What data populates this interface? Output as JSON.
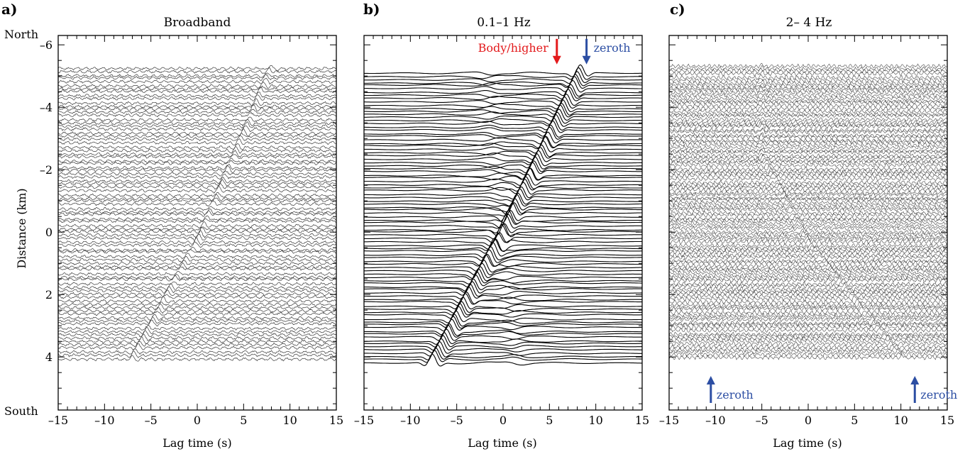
{
  "figure": {
    "panels": [
      {
        "letter": "a)",
        "title": "Broadband",
        "xlabel": "Lag time (s)",
        "ylabel": "Distance (km)",
        "ylabel_top": "North",
        "ylabel_bottom": "South",
        "annotations": []
      },
      {
        "letter": "b)",
        "title": "0.1–1 Hz",
        "xlabel": "Lag time (s)",
        "annotations": [
          {
            "text": "Body/higher",
            "color": "#e31a1c",
            "arrow": "down",
            "lag": 5.8,
            "distance": -5.6
          },
          {
            "text": "zeroth",
            "color": "#2c4ea3",
            "arrow": "down",
            "lag": 9.0,
            "distance": -5.6
          }
        ]
      },
      {
        "letter": "c)",
        "title": "2– 4 Hz",
        "xlabel": "Lag time (s)",
        "annotations": [
          {
            "text": "zeroth",
            "color": "#2c4ea3",
            "arrow": "up",
            "lag": -10.5,
            "distance": 4.7
          },
          {
            "text": "zeroth",
            "color": "#2c4ea3",
            "arrow": "up",
            "lag": 11.5,
            "distance": 4.7
          }
        ]
      }
    ]
  },
  "chart_data": [
    {
      "type": "line",
      "title": "Broadband",
      "xlabel": "Lag time (s)",
      "ylabel": "Distance (km)",
      "xlim": [
        -15,
        15
      ],
      "ylim": [
        -6.3,
        5.7
      ],
      "y_inverted": true,
      "xticks": [
        -15,
        -10,
        -5,
        0,
        5,
        10,
        15
      ],
      "yticks": [
        -6,
        -4,
        -2,
        0,
        2,
        4
      ],
      "trace_distance_range": [
        -5.25,
        4.05
      ],
      "moveout": [
        {
          "lag": -7.5,
          "distance": 4.3
        },
        {
          "lag": 0.5,
          "distance": 0.0
        },
        {
          "lag": 8.0,
          "distance": -5.3
        }
      ],
      "trace_color": "#3a3a3a"
    },
    {
      "type": "line",
      "title": "0.1–1 Hz",
      "xlabel": "Lag time (s)",
      "xlim": [
        -15,
        15
      ],
      "ylim": [
        -6.3,
        5.7
      ],
      "y_inverted": true,
      "xticks": [
        -15,
        -10,
        -5,
        0,
        5,
        10,
        15
      ],
      "trace_distance_range": [
        -5.1,
        4.2
      ],
      "moveout": [
        {
          "lag": -8.0,
          "distance": 4.4
        },
        {
          "lag": 0.0,
          "distance": 0.0
        },
        {
          "lag": 8.5,
          "distance": -5.2
        }
      ],
      "trace_color": "#000000"
    },
    {
      "type": "line",
      "title": "2– 4 Hz",
      "xlabel": "Lag time (s)",
      "xlim": [
        -15,
        15
      ],
      "ylim": [
        -6.3,
        5.7
      ],
      "y_inverted": true,
      "xticks": [
        -15,
        -10,
        -5,
        0,
        5,
        10,
        15
      ],
      "trace_distance_range": [
        -5.3,
        4.0
      ],
      "moveout": [
        {
          "lag": -5.0,
          "distance": -2.5
        },
        {
          "lag": 0.0,
          "distance": 0.3
        },
        {
          "lag": 11.0,
          "distance": 4.3
        }
      ],
      "trace_color": "#4a4a4a"
    }
  ]
}
